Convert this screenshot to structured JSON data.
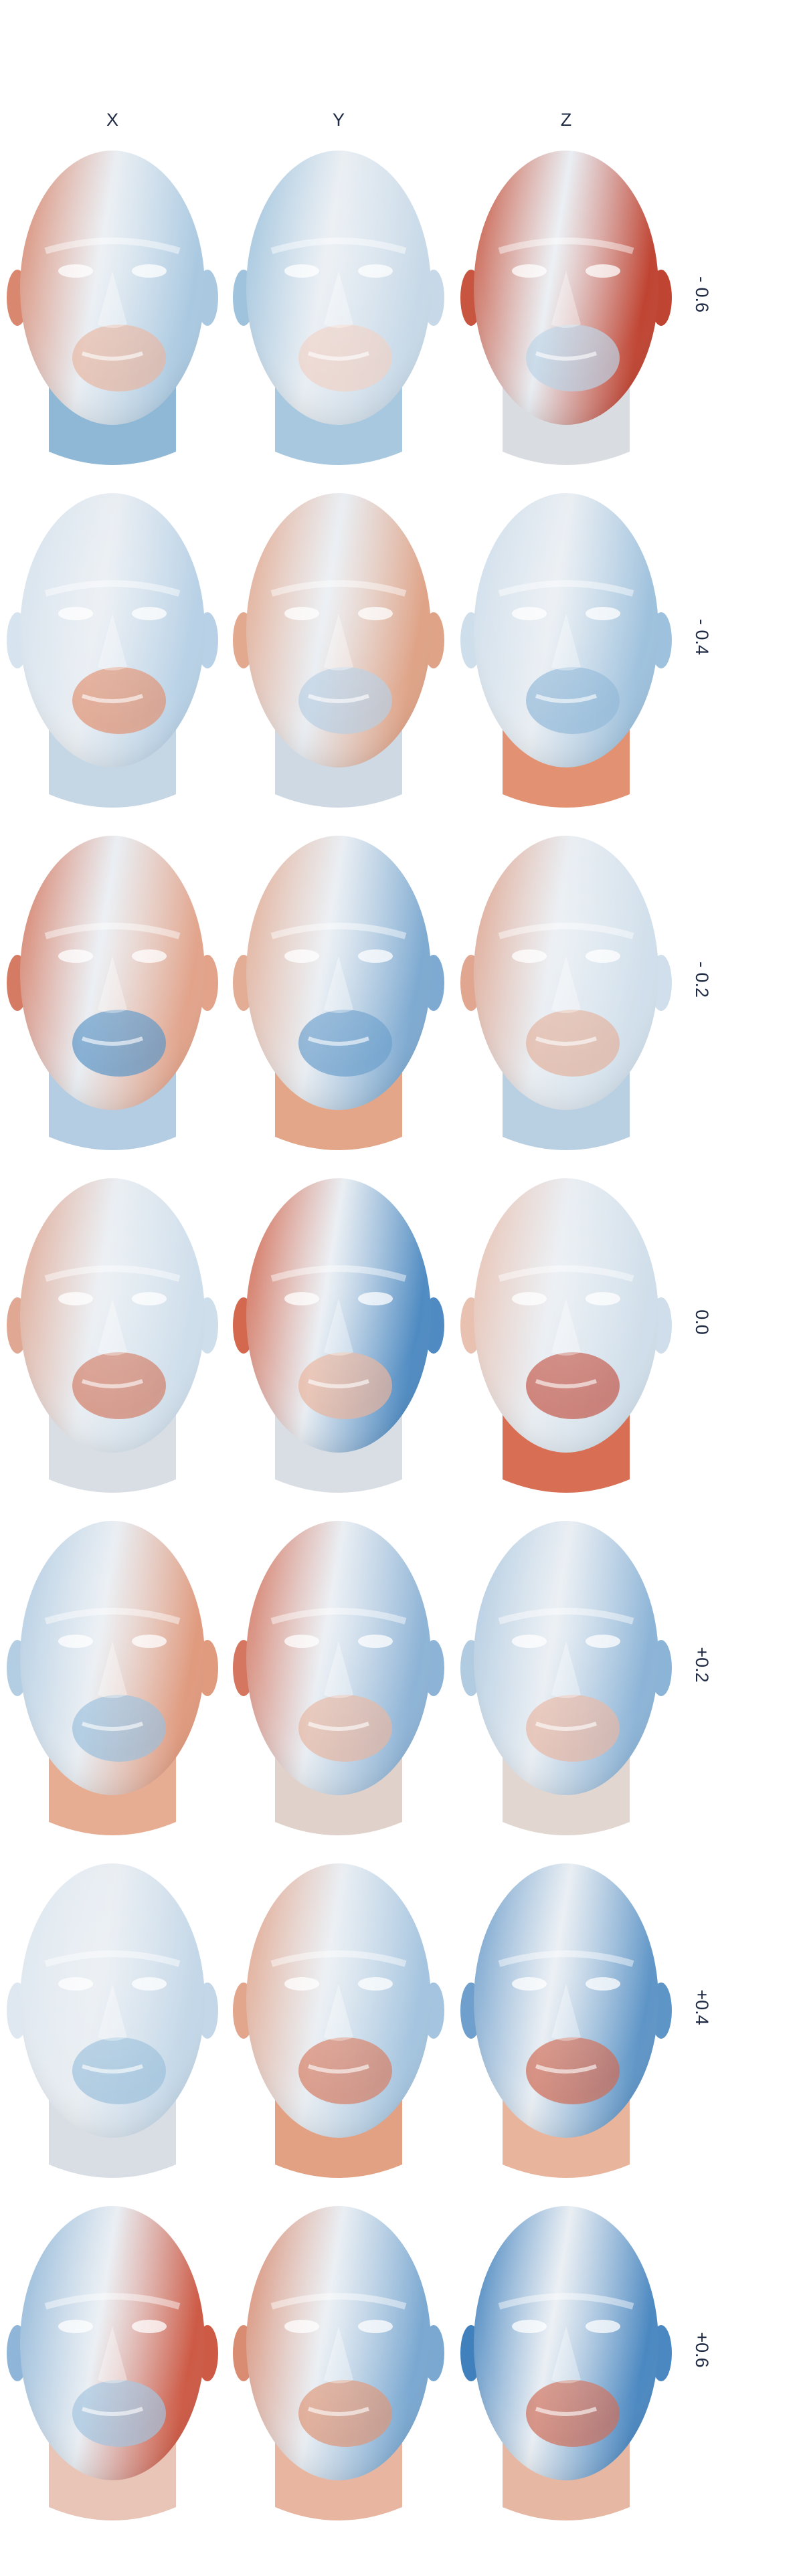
{
  "columns": [
    {
      "label": "X"
    },
    {
      "label": "Y"
    },
    {
      "label": "Z"
    }
  ],
  "rows": [
    {
      "label": "- 0.6",
      "cells": [
        {
          "left": "#d9886f",
          "right": "#aac9e1",
          "neck": "#8fb7d6",
          "accent": "#e7b6a3"
        },
        {
          "left": "#9fc3dd",
          "right": "#c7d9e8",
          "neck": "#a8c8e0",
          "accent": "#f0d2c6"
        },
        {
          "left": "#c8553f",
          "right": "#c04432",
          "neck": "#d9dde2",
          "accent": "#bcd3e6"
        }
      ]
    },
    {
      "label": "- 0.4",
      "cells": [
        {
          "left": "#d7e3ee",
          "right": "#b8d1e6",
          "neck": "#c5d6e5",
          "accent": "#df9272"
        },
        {
          "left": "#e3a98f",
          "right": "#dfa387",
          "neck": "#cfd9e3",
          "accent": "#b9cfe2"
        },
        {
          "left": "#cfdeeb",
          "right": "#9ec1dd",
          "neck": "#e29272",
          "accent": "#93b9d9"
        }
      ]
    },
    {
      "label": "- 0.2",
      "cells": [
        {
          "left": "#d67b63",
          "right": "#e2a38a",
          "neck": "#b5cde2",
          "accent": "#5d95c6"
        },
        {
          "left": "#e3ad95",
          "right": "#7eaad1",
          "neck": "#e4a688",
          "accent": "#6c9fcc"
        },
        {
          "left": "#e0a690",
          "right": "#d0dfeb",
          "neck": "#b9cfe2",
          "accent": "#e3b29e"
        }
      ]
    },
    {
      "label": "0.0",
      "cells": [
        {
          "left": "#e0a893",
          "right": "#cedeeb",
          "neck": "#d9dee4",
          "accent": "#d17d66"
        },
        {
          "left": "#d3684f",
          "right": "#4f8bc2",
          "neck": "#d9dee4",
          "accent": "#e8b39c"
        },
        {
          "left": "#e9c1b1",
          "right": "#cfdeea",
          "neck": "#d86f54",
          "accent": "#c3584a"
        }
      ]
    },
    {
      "label": "+0.2",
      "cells": [
        {
          "left": "#b3cde3",
          "right": "#e09a7e",
          "neck": "#e7ad93",
          "accent": "#9bbfdc"
        },
        {
          "left": "#d57660",
          "right": "#8db3d6",
          "neck": "#e0d2cb",
          "accent": "#e6b7a3"
        },
        {
          "left": "#b1cbe1",
          "right": "#8cb4d7",
          "neck": "#e1d6d0",
          "accent": "#e7b7a4"
        }
      ]
    },
    {
      "label": "+0.4",
      "cells": [
        {
          "left": "#dfe8f0",
          "right": "#c3d7e8",
          "neck": "#d9dee4",
          "accent": "#9dc0dc"
        },
        {
          "left": "#e2a68d",
          "right": "#a4c4df",
          "neck": "#e3a184",
          "accent": "#d67d64"
        },
        {
          "left": "#6f9fcc",
          "right": "#5e95c7",
          "neck": "#e8b49c",
          "accent": "#cf6a52"
        }
      ]
    },
    {
      "label": "+0.6",
      "cells": [
        {
          "left": "#8fb6d8",
          "right": "#cd5a45",
          "neck": "#e8c5b6",
          "accent": "#a3c3de"
        },
        {
          "left": "#d98c71",
          "right": "#7aa8d1",
          "neck": "#e8b6a0",
          "accent": "#dd9677"
        },
        {
          "left": "#3f80bd",
          "right": "#4b88c1",
          "neck": "#e6b8a3",
          "accent": "#cf6e58"
        }
      ]
    }
  ]
}
